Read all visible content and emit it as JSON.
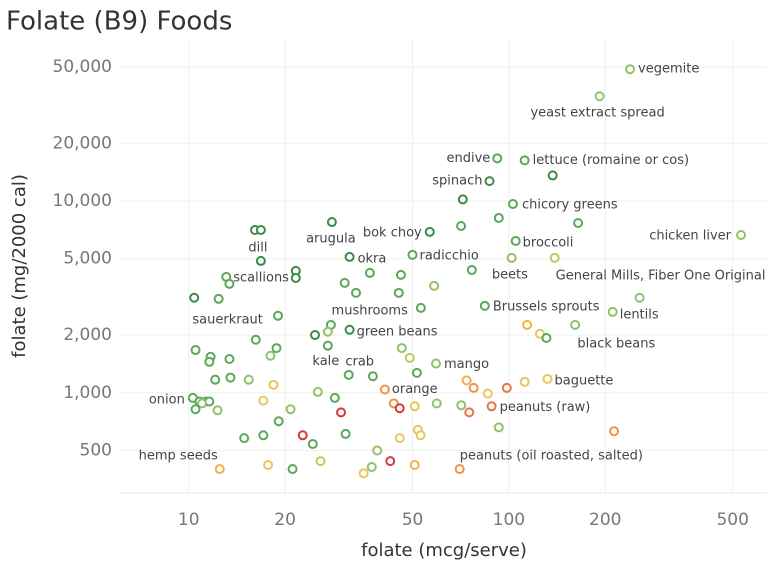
{
  "chart_data": {
    "type": "scatter",
    "title": "Folate (B9) Foods",
    "x_label": "folate (mcg/serve)",
    "y_label": "folate (mg/2000 cal)",
    "log_x": true,
    "log_y": true,
    "grid": true,
    "xlim": [
      6.1,
      640
    ],
    "ylim": [
      300,
      70000
    ],
    "xticks": [
      10,
      20,
      50,
      100,
      200,
      500
    ],
    "yticks": [
      500,
      {
        "value": 1000,
        "label": "1,000"
      },
      {
        "value": 2000,
        "label": "2,000"
      },
      {
        "value": 5000,
        "label": "5,000"
      },
      {
        "value": 10000,
        "label": "10,000"
      },
      {
        "value": 20000,
        "label": "20,000"
      },
      {
        "value": 50000,
        "label": "50,000"
      }
    ],
    "x": [
      239,
      192,
      92,
      112,
      87,
      137,
      103,
      71.8,
      93,
      70.9,
      164.5,
      531,
      105,
      56.6,
      28,
      16.1,
      16.8,
      16.8,
      31.8,
      50,
      139,
      102,
      13.1,
      13.4,
      21.6,
      21.6,
      30.7,
      36.8,
      46,
      76.6,
      58.4,
      33.3,
      10.4,
      12.4,
      45.3,
      53.1,
      84.1,
      211,
      256,
      19,
      27.8,
      24.8,
      31.8,
      114,
      125,
      131,
      161,
      27.2,
      16.2,
      27.2,
      10.5,
      18.8,
      46.3,
      11.7,
      13.4,
      18,
      11.6,
      49,
      59.2,
      51.6,
      31.6,
      37.6,
      13.5,
      15.4,
      12.1,
      132,
      112,
      73.8,
      77.6,
      98.5,
      41,
      18.4,
      25.3,
      85.9,
      10.3,
      10.8,
      11.3,
      11.6,
      11,
      10.5,
      12.3,
      17.1,
      20.8,
      28.6,
      29.9,
      43.7,
      45.6,
      50.8,
      59.5,
      71,
      88.3,
      75.2,
      19.1,
      52,
      53,
      93,
      213,
      22.7,
      30.9,
      17.1,
      14.9,
      45.6,
      24.4,
      38.8,
      25.8,
      12.5,
      17.7,
      21.1,
      35.2,
      37.3,
      42.6,
      50.8,
      70.2
    ],
    "values": [
      48700,
      35200,
      16700,
      16300,
      12700,
      13600,
      9650,
      10200,
      8160,
      7410,
      7680,
      6650,
      6190,
      6900,
      7770,
      7060,
      7060,
      4870,
      5110,
      5240,
      5050,
      5050,
      4020,
      3700,
      4320,
      3970,
      3740,
      4220,
      4120,
      4370,
      3610,
      3320,
      3130,
      3090,
      3320,
      2770,
      2840,
      2640,
      3130,
      2520,
      2260,
      2000,
      2130,
      2260,
      2030,
      1930,
      2260,
      2080,
      1890,
      1760,
      1670,
      1710,
      1710,
      1540,
      1500,
      1560,
      1450,
      1520,
      1420,
      1270,
      1240,
      1220,
      1200,
      1170,
      1170,
      1180,
      1140,
      1160,
      1060,
      1060,
      1040,
      1100,
      1010,
      990,
      940,
      900,
      900,
      900,
      880,
      820,
      810,
      910,
      820,
      940,
      790,
      880,
      830,
      850,
      880,
      860,
      850,
      790,
      710,
      640,
      600,
      660,
      630,
      600,
      610,
      600,
      580,
      580,
      540,
      500,
      440,
      400,
      420,
      400,
      380,
      410,
      440,
      420,
      400
    ],
    "colors": [
      "#8fc26b",
      "#8fc26b",
      "#5ba85c",
      "#5ba85c",
      "#3d8b4a",
      "#3d8b4a",
      "#5ba85c",
      "#3d8b4a",
      "#5ba85c",
      "#5ba85c",
      "#5ba85c",
      "#8fc26b",
      "#5ba85c",
      "#3d8b4a",
      "#3d8b4a",
      "#3d8b4a",
      "#3d8b4a",
      "#3d8b4a",
      "#3d8b4a",
      "#5ba85c",
      "#c4c95e",
      "#8fc26b",
      "#5ba85c",
      "#5ba85c",
      "#3d8b4a",
      "#3d8b4a",
      "#5ba85c",
      "#5ba85c",
      "#5ba85c",
      "#5ba85c",
      "#8fc26b",
      "#5ba85c",
      "#3d8b4a",
      "#5ba85c",
      "#5ba85c",
      "#5ba85c",
      "#5ba85c",
      "#8fc26b",
      "#8fc26b",
      "#5ba85c",
      "#5ba85c",
      "#3d8b4a",
      "#3d8b4a",
      "#f0b247",
      "#e6c75a",
      "#5ba85c",
      "#8fc26b",
      "#8fc26b",
      "#5ba85c",
      "#5ba85c",
      "#5ba85c",
      "#5ba85c",
      "#8fc26b",
      "#5ba85c",
      "#5ba85c",
      "#8fc26b",
      "#5ba85c",
      "#c4c95e",
      "#8fc26b",
      "#5ba85c",
      "#5ba85c",
      "#5ba85c",
      "#5ba85c",
      "#8fc26b",
      "#5ba85c",
      "#e6c75a",
      "#e6c75a",
      "#f0b247",
      "#ee9448",
      "#e8744a",
      "#ee9448",
      "#e6c75a",
      "#8fc26b",
      "#e6c75a",
      "#5ba85c",
      "#5ba85c",
      "#5ba85c",
      "#5ba85c",
      "#8fc26b",
      "#5ba85c",
      "#8fc26b",
      "#e6c75a",
      "#8fc26b",
      "#5ba85c",
      "#d43a3a",
      "#ee9448",
      "#d43a3a",
      "#e6c75a",
      "#8fc26b",
      "#8fc26b",
      "#e8744a",
      "#e8744a",
      "#5ba85c",
      "#e6c75a",
      "#e6c75a",
      "#8fc26b",
      "#ee9448",
      "#d43a3a",
      "#5ba85c",
      "#5ba85c",
      "#5ba85c",
      "#e6c75a",
      "#5ba85c",
      "#8fc26b",
      "#c4c95e",
      "#f0b247",
      "#e6c75a",
      "#5ba85c",
      "#e6c75a",
      "#8fc26b",
      "#d43a3a",
      "#f0b247",
      "#ee9448"
    ],
    "labels": [
      "vegemite",
      "yeast extract spread",
      "endive",
      "lettuce (romaine or cos)",
      "spinach",
      null,
      "chicory greens",
      null,
      null,
      null,
      null,
      "chicken liver",
      "broccoli",
      "bok choy",
      "arugula",
      "dill",
      null,
      null,
      "okra",
      "radicchio",
      "General Mills, Fiber One Original",
      null,
      "scallions",
      null,
      null,
      null,
      null,
      null,
      null,
      "beets",
      null,
      null,
      null,
      "sauerkraut",
      null,
      "mushrooms",
      "Brussels sprouts",
      "lentils",
      null,
      null,
      null,
      null,
      "green beans",
      null,
      null,
      "black beans",
      null,
      null,
      null,
      "kale",
      null,
      null,
      null,
      null,
      null,
      null,
      null,
      null,
      "mango",
      null,
      "crab",
      null,
      null,
      null,
      null,
      "baguette",
      null,
      null,
      null,
      null,
      "orange",
      null,
      null,
      null,
      "onion",
      null,
      null,
      null,
      null,
      null,
      null,
      null,
      null,
      null,
      null,
      null,
      null,
      null,
      null,
      null,
      "peanuts (raw)",
      null,
      null,
      null,
      null,
      null,
      null,
      null,
      null,
      null,
      null,
      null,
      null,
      null,
      null,
      "hemp seeds",
      null,
      null,
      null,
      null,
      null,
      null,
      "peanuts (oil roasted, salted)"
    ]
  }
}
